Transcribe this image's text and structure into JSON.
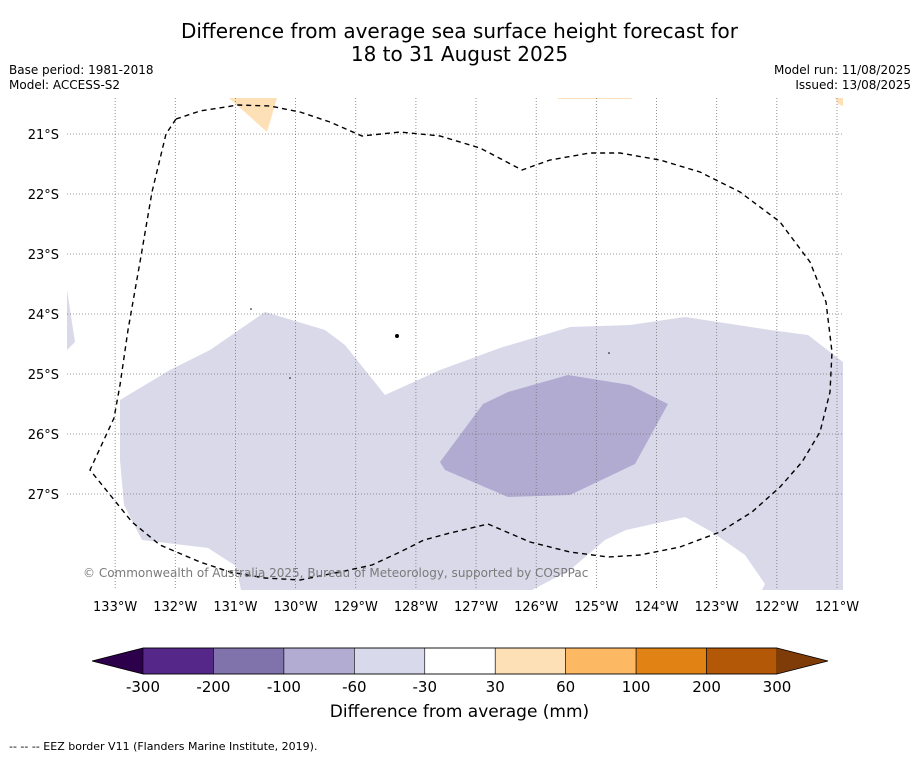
{
  "title_line1": "Difference from average sea surface height forecast for",
  "title_line2": "18 to 31 August 2025",
  "base_period": "Base period: 1981-2018",
  "model": "Model: ACCESS-S2",
  "model_run": "Model run: 11/08/2025",
  "issued": "Issued: 13/08/2025",
  "copyright": "© Commonwealth of Australia 2025, Bureau of Meteorology, supported by COSPPac",
  "footer_note": "--  --  -- EEZ border V11 (Flanders Marine Institute, 2019).",
  "map": {
    "lon_labels": [
      "133°W",
      "132°W",
      "131°W",
      "130°W",
      "129°W",
      "128°W",
      "127°W",
      "126°W",
      "125°W",
      "124°W",
      "123°W",
      "122°W",
      "121°W"
    ],
    "lat_labels": [
      "21°S",
      "22°S",
      "23°S",
      "24°S",
      "25°S",
      "26°S",
      "27°S"
    ],
    "lon_range": [
      -133.8,
      -120.9
    ],
    "lat_range": [
      -28.6,
      -20.4
    ],
    "gridlines": true,
    "regions": [
      {
        "category": "-60 to -30",
        "color": "#d9d9ea"
      },
      {
        "category": "-100 to -60",
        "color": "#b1abd2"
      },
      {
        "category": "30 to 60",
        "color": "#fee0b6"
      }
    ],
    "eez_border": "dashed black"
  },
  "colorbar": {
    "label": "Difference from average (mm)",
    "tick_labels": [
      "-300",
      "-200",
      "-100",
      "-60",
      "-30",
      "30",
      "60",
      "100",
      "200",
      "300"
    ],
    "colors": [
      "#542788",
      "#8073ac",
      "#b2abd2",
      "#d8daeb",
      "#ffffff",
      "#fee0b6",
      "#fdb863",
      "#e08214",
      "#b35806"
    ],
    "under_color": "#2d004b",
    "over_color": "#7f3b08"
  }
}
